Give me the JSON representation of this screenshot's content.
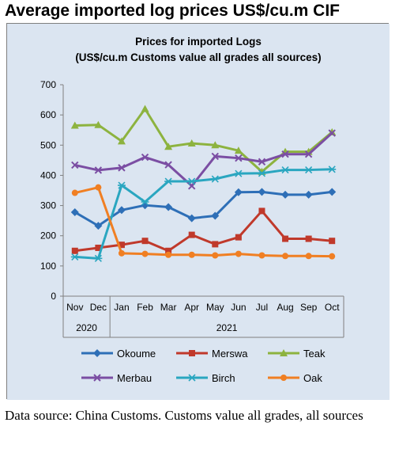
{
  "heading": "Average imported log prices US$/cu.m CIF",
  "footer": "Data source: China Customs. Customs value all grades, all sources",
  "chart_data": {
    "type": "line",
    "title": "Prices for imported Logs",
    "subtitle": "(US$/cu.m Customs value all grades all sources)",
    "categories": [
      "Nov",
      "Dec",
      "Jan",
      "Feb",
      "Mar",
      "Apr",
      "May",
      "Jun",
      "Jul",
      "Aug",
      "Sep",
      "Oct"
    ],
    "year_groups": [
      {
        "label": "2020",
        "start": 0,
        "end": 1
      },
      {
        "label": "2021",
        "start": 2,
        "end": 11
      }
    ],
    "ylim": [
      0,
      700
    ],
    "yticks": [
      0,
      100,
      200,
      300,
      400,
      500,
      600,
      700
    ],
    "grid": false,
    "legend_position": "bottom",
    "series": [
      {
        "name": "Okoume",
        "color": "#2e6fb7",
        "marker": "diamond",
        "values": [
          278,
          233,
          285,
          301,
          295,
          258,
          266,
          344,
          345,
          336,
          336,
          345
        ]
      },
      {
        "name": "Merswa",
        "color": "#c0392b",
        "marker": "square",
        "values": [
          150,
          160,
          170,
          183,
          150,
          203,
          172,
          195,
          282,
          190,
          190,
          183
        ]
      },
      {
        "name": "Teak",
        "color": "#8db33f",
        "marker": "triangle",
        "values": [
          565,
          567,
          513,
          620,
          495,
          506,
          500,
          482,
          412,
          478,
          478,
          543
        ]
      },
      {
        "name": "Merbau",
        "color": "#7b4ea3",
        "marker": "x",
        "values": [
          434,
          417,
          425,
          460,
          435,
          365,
          463,
          457,
          445,
          470,
          470,
          540
        ]
      },
      {
        "name": "Birch",
        "color": "#2aa6c0",
        "marker": "star",
        "values": [
          130,
          125,
          367,
          312,
          380,
          380,
          388,
          406,
          407,
          418,
          418,
          420
        ]
      },
      {
        "name": "Oak",
        "color": "#f07f23",
        "marker": "circle",
        "values": [
          342,
          360,
          142,
          140,
          137,
          137,
          135,
          140,
          135,
          133,
          133,
          132
        ]
      }
    ]
  }
}
